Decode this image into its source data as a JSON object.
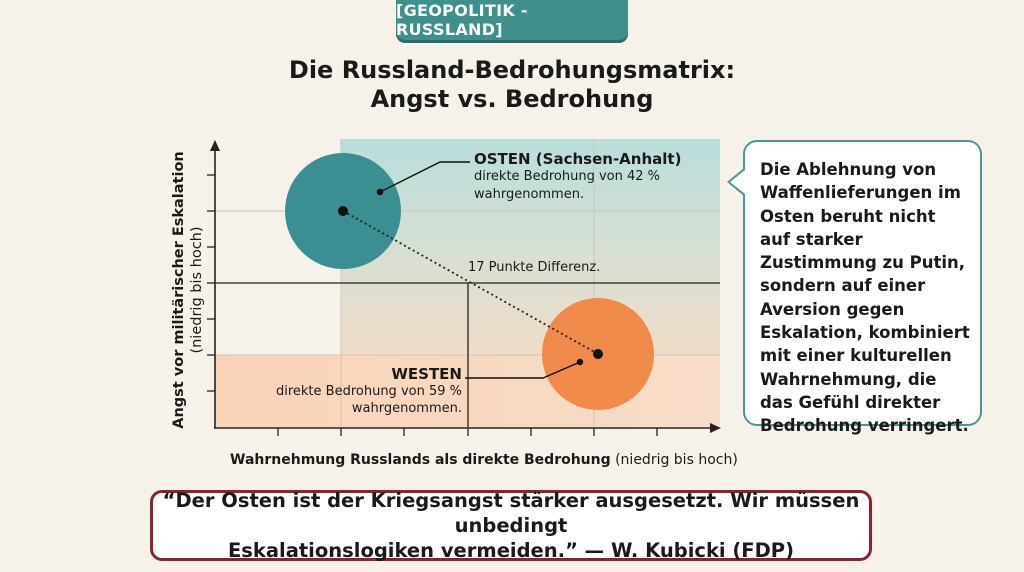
{
  "header": {
    "tag": "[GEOPOLITIK - RUSSLAND]"
  },
  "title": {
    "line1": "Die Russland-Bedrohungsmatrix:",
    "line2": "Angst vs. Bedrohung"
  },
  "axes": {
    "y_label_bold": "Angst vor militärischer Eskalation",
    "y_label_range": "(niedrig bis hoch)",
    "x_label_bold": "Wahrnehmung Russlands als direkte Bedrohung",
    "x_label_range": " (niedrig bis hoch)"
  },
  "east": {
    "heading": "OSTEN (Sachsen-Anhalt)",
    "text_line1": "direkte Bedrohung von 42 %",
    "text_line2": "wahrgenommen.",
    "color": "#3b8f92",
    "threat_percent": 42
  },
  "west": {
    "heading": "WESTEN",
    "text_line1": "direkte Bedrohung von 59 %",
    "text_line2": "wahrgenommen.",
    "color": "#ef8a4a",
    "threat_percent": 59
  },
  "difference": {
    "label": "17 Punkte Differenz."
  },
  "bubble": {
    "text": "Die Ablehnung von Waffenlieferungen im Osten beruht nicht auf starker Zustimmung zu Putin, sondern auf einer Aversion gegen Eskalation, kombiniert mit einer kulturellen Wahrnehmung, die das Gefühl direkter Bedrohung verringert."
  },
  "quote": {
    "line1": "“Der Osten ist der Kriegsangst stärker ausgesetzt. Wir müssen unbedingt",
    "line2": "Eskalationslogiken vermeiden.” — W. Kubicki (FDP)"
  },
  "colors": {
    "accent_teal": "#3f8f8c",
    "quote_border": "#8b2430",
    "bubble_border": "#4c9795"
  }
}
